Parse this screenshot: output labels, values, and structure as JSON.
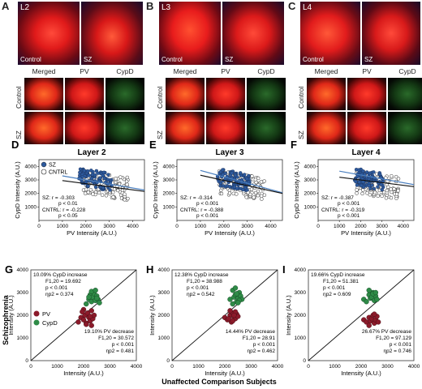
{
  "panels": {
    "A": {
      "letter": "A",
      "layer": "L2",
      "left": "Control",
      "right": "SZ"
    },
    "B": {
      "letter": "B",
      "layer": "L3",
      "left": "Control",
      "right": "SZ"
    },
    "C": {
      "letter": "C",
      "layer": "L4",
      "left": "Control",
      "right": "SZ"
    }
  },
  "small_headers": {
    "merged": "Merged",
    "pv": "PV",
    "cypd": "CypD",
    "row_control": "Control",
    "row_sz": "SZ"
  },
  "scatter_panels": {
    "D": {
      "letter": "D",
      "title": "Layer 2",
      "ylabel": "CypD Intensity (A.U.)",
      "xlabel": "PV Intensity (A.U.)",
      "legend": [
        "SZ",
        "CNTRL"
      ],
      "stats": [
        "SZ: r = -0.303",
        "p < 0.01",
        "CNTRL: r = -0.228",
        "p < 0.05"
      ]
    },
    "E": {
      "letter": "E",
      "title": "Layer 3",
      "ylabel": "CypD Intensity (A.U.)",
      "xlabel": "PV Intensity (A.U.)",
      "stats": [
        "SZ: r = -0.314",
        "p < 0.001",
        "CNTRL: r = -0.388",
        "p < 0.001"
      ]
    },
    "F": {
      "letter": "F",
      "title": "Layer 4",
      "ylabel": "CypD Intensity (A.U.)",
      "xlabel": "PV Intensity (A.U.)",
      "stats": [
        "SZ: r = -0.387",
        "p < 0.001",
        "CNTRL: r = -0.319",
        "p < 0.001"
      ]
    }
  },
  "comparison_panels": {
    "G": {
      "letter": "G",
      "ylabel": "Intensity (A.U.)",
      "top": [
        "10.09% CypD increase",
        "F1,20 = 19.692",
        "p < 0.001",
        "ηp2 = 0.374"
      ],
      "bottom": [
        "19.10% PV decrease",
        "F1,20 = 30.572",
        "p < 0.001",
        "ηp2 = 0.481"
      ],
      "legend": [
        "PV",
        "CypD"
      ]
    },
    "H": {
      "letter": "H",
      "ylabel": "Intensity (A.U.)",
      "top": [
        "12.38% CypD increase",
        "F1,20 = 38.988",
        "p < 0.001",
        "ηp2 = 0.542"
      ],
      "bottom": [
        "14.44% PV decrease",
        "F1,20 = 28.91",
        "p < 0.001",
        "ηp2 = 0.462"
      ]
    },
    "I": {
      "letter": "I",
      "ylabel": "Intensity (A.U.)",
      "top": [
        "19.66% CypD increase",
        "F1,20 = 51.381",
        "p < 0.001",
        "ηp2 = 0.609"
      ],
      "bottom": [
        "26.67% PV decrease",
        "F1,20 = 97.129",
        "p < 0.001",
        "ηp2 = 0.746"
      ]
    }
  },
  "row_axis_label": "Schizophrenia",
  "bottom_axis_label": "Unaffected  Comparison Subjects",
  "colors": {
    "sz": "#2d5a9e",
    "cntrl": "#ffffff",
    "pv": "#8b1a2a",
    "cypd": "#2e8b47",
    "sz_line": "#4a7fbf",
    "cntrl_line": "#111111"
  },
  "chart_data": [
    {
      "type": "scatter",
      "panel": "D",
      "title": "Layer 2",
      "xlabel": "PV Intensity (A.U.)",
      "ylabel": "CypD Intensity (A.U.)",
      "xlim": [
        0,
        4500
      ],
      "ylim": [
        0,
        4500
      ],
      "xticks": [
        0,
        1000,
        2000,
        3000,
        4000
      ],
      "yticks": [
        1000,
        2000,
        3000,
        4000
      ],
      "series": [
        {
          "name": "SZ",
          "fit": [
            [
              1000,
              3300
            ],
            [
              4500,
              2250
            ]
          ]
        },
        {
          "name": "CNTRL",
          "fit": [
            [
              1000,
              2950
            ],
            [
              4500,
              2150
            ]
          ]
        }
      ]
    },
    {
      "type": "scatter",
      "panel": "E",
      "title": "Layer 3",
      "xlabel": "PV Intensity (A.U.)",
      "ylabel": "CypD Intensity (A.U.)",
      "xlim": [
        0,
        4500
      ],
      "ylim": [
        0,
        4500
      ],
      "xticks": [
        0,
        1000,
        2000,
        3000,
        4000
      ],
      "yticks": [
        1000,
        2000,
        3000,
        4000
      ],
      "series": [
        {
          "fit": [
            [
              1000,
              3700
            ],
            [
              4500,
              2050
            ]
          ]
        },
        {
          "fit": [
            [
              1000,
              3350
            ],
            [
              4500,
              2000
            ]
          ]
        }
      ]
    },
    {
      "type": "scatter",
      "panel": "F",
      "title": "Layer 4",
      "xlabel": "PV Intensity (A.U.)",
      "ylabel": "CypD Intensity (A.U.)",
      "xlim": [
        0,
        4500
      ],
      "ylim": [
        0,
        4500
      ],
      "xticks": [
        0,
        1000,
        2000,
        3000,
        4000
      ],
      "yticks": [
        1000,
        2000,
        3000,
        4000
      ],
      "series": [
        {
          "fit": [
            [
              1000,
              3650
            ],
            [
              4500,
              2650
            ]
          ]
        },
        {
          "fit": [
            [
              1000,
              3200
            ],
            [
              4500,
              2500
            ]
          ]
        }
      ]
    },
    {
      "type": "scatter",
      "panel": "G",
      "xlim": [
        0,
        4000
      ],
      "ylim": [
        0,
        4000
      ],
      "xticks": [
        0,
        1000,
        2000,
        3000,
        4000
      ],
      "yticks": [
        0,
        1000,
        2000,
        3000,
        4000
      ],
      "series": [
        {
          "name": "PV",
          "x": [
            1800,
            1900,
            2000,
            2050,
            2100,
            2150,
            2200,
            2250,
            2300,
            2350,
            2400,
            2000,
            2100,
            2250,
            1950,
            2300
          ],
          "y": [
            1700,
            1900,
            1800,
            2000,
            1650,
            2100,
            1900,
            1750,
            2200,
            1850,
            2000,
            2250,
            1600,
            1950,
            2150,
            1550
          ]
        },
        {
          "name": "CypD",
          "x": [
            2100,
            2200,
            2250,
            2300,
            2350,
            2400,
            2450,
            2500,
            2550,
            2600,
            2300,
            2450,
            2200,
            2500
          ],
          "y": [
            2500,
            2700,
            2900,
            2600,
            2800,
            2950,
            2650,
            2850,
            2700,
            2550,
            3050,
            3100,
            2800,
            2750
          ]
        }
      ]
    },
    {
      "type": "scatter",
      "panel": "H",
      "xlim": [
        0,
        4000
      ],
      "ylim": [
        0,
        4000
      ],
      "xticks": [
        0,
        1000,
        2000,
        3000,
        4000
      ],
      "yticks": [
        0,
        1000,
        2000,
        3000,
        4000
      ],
      "series": [
        {
          "x": [
            2000,
            2100,
            2200,
            2250,
            2300,
            2350,
            2400,
            2450,
            2500,
            2200,
            2300,
            2400,
            2150,
            2350
          ],
          "y": [
            1900,
            1800,
            2000,
            1700,
            2100,
            1900,
            1850,
            2050,
            1950,
            2200,
            1750,
            2150,
            1850,
            2000
          ]
        },
        {
          "x": [
            2200,
            2300,
            2350,
            2400,
            2450,
            2500,
            2550,
            2600,
            2650,
            2300,
            2450,
            2550,
            2400,
            2500
          ],
          "y": [
            2700,
            2500,
            2800,
            2900,
            2600,
            2750,
            3000,
            2850,
            2700,
            3100,
            2950,
            2650,
            3200,
            2550
          ]
        }
      ]
    },
    {
      "type": "scatter",
      "panel": "I",
      "xlim": [
        0,
        4000
      ],
      "ylim": [
        0,
        4000
      ],
      "xticks": [
        0,
        1000,
        2000,
        3000,
        4000
      ],
      "yticks": [
        0,
        1000,
        2000,
        3000,
        4000
      ],
      "series": [
        {
          "x": [
            2100,
            2200,
            2300,
            2350,
            2400,
            2450,
            2500,
            2550,
            2600,
            2650,
            2300,
            2500
          ],
          "y": [
            1800,
            1700,
            1900,
            1750,
            1850,
            2000,
            1650,
            1800,
            1950,
            1700,
            1550,
            2050
          ]
        },
        {
          "x": [
            2100,
            2200,
            2300,
            2350,
            2400,
            2450,
            2500,
            2550,
            2600,
            2300,
            2450,
            2550
          ],
          "y": [
            2700,
            2600,
            2900,
            2750,
            2800,
            3000,
            2650,
            2850,
            2700,
            3100,
            2950,
            3000
          ]
        }
      ]
    }
  ]
}
